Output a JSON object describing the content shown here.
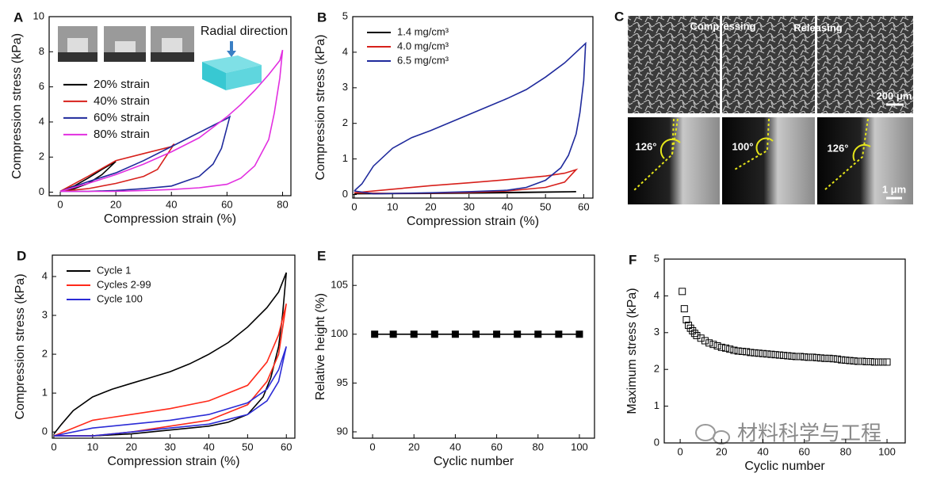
{
  "chart_data": [
    {
      "panel": "A",
      "type": "line",
      "xlabel": "Compression strain (%)",
      "ylabel": "Compression stress (kPa)",
      "xlim": [
        -4,
        83
      ],
      "ylim": [
        -0.2,
        10
      ],
      "xticks": [
        0,
        20,
        40,
        60,
        80
      ],
      "yticks": [
        0,
        2,
        4,
        6,
        8,
        10
      ],
      "legend": "center left",
      "annotations": [
        "Radial direction"
      ],
      "series": [
        {
          "name": "20% strain",
          "color": "#000000",
          "x": [
            0,
            5,
            10,
            15,
            20,
            15,
            10,
            5,
            0
          ],
          "values": [
            0.05,
            0.35,
            0.8,
            1.3,
            1.75,
            1.0,
            0.5,
            0.2,
            0.05
          ]
        },
        {
          "name": "40% strain",
          "color": "#d7201b",
          "x": [
            0,
            10,
            20,
            30,
            40,
            41,
            35,
            30,
            20,
            10,
            0
          ],
          "values": [
            0.05,
            0.9,
            1.8,
            2.2,
            2.6,
            2.75,
            1.3,
            0.9,
            0.5,
            0.2,
            0.05
          ]
        },
        {
          "name": "60% strain",
          "color": "#1f2a9c",
          "x": [
            0,
            10,
            20,
            30,
            40,
            45,
            50,
            55,
            60,
            61,
            58,
            55,
            50,
            40,
            30,
            20,
            10,
            0
          ],
          "values": [
            0.05,
            0.6,
            1.1,
            1.8,
            2.6,
            3.0,
            3.4,
            3.8,
            4.2,
            4.3,
            2.5,
            1.6,
            0.9,
            0.35,
            0.2,
            0.1,
            0.05,
            0.05
          ]
        },
        {
          "name": "80% strain",
          "color": "#e22fe0",
          "x": [
            0,
            10,
            20,
            30,
            40,
            50,
            60,
            65,
            70,
            75,
            79,
            80,
            79,
            77,
            75,
            70,
            65,
            60,
            50,
            40,
            30,
            20,
            10,
            0
          ],
          "values": [
            0.05,
            0.5,
            1.0,
            1.6,
            2.3,
            3.1,
            4.3,
            5.0,
            5.8,
            6.7,
            7.5,
            8.1,
            6.5,
            4.5,
            3.0,
            1.5,
            0.8,
            0.45,
            0.25,
            0.15,
            0.1,
            0.05,
            0.05,
            0.05
          ]
        }
      ]
    },
    {
      "panel": "B",
      "type": "line",
      "xlabel": "Compression strain (%)",
      "ylabel": "Compression stress (kPa)",
      "xlim": [
        -0.4,
        62.4
      ],
      "ylim": [
        -0.1,
        5
      ],
      "xticks": [
        0,
        10,
        20,
        30,
        40,
        50,
        60
      ],
      "yticks": [
        0,
        1,
        2,
        3,
        4,
        5
      ],
      "legend": "upper left",
      "series": [
        {
          "name": "1.4 mg/cm³",
          "color": "#000000",
          "x": [
            0,
            20,
            40,
            58,
            40,
            20,
            0
          ],
          "values": [
            0.02,
            0.04,
            0.06,
            0.08,
            0.05,
            0.03,
            0.02
          ]
        },
        {
          "name": "4.0 mg/cm³",
          "color": "#d7201b",
          "x": [
            0,
            10,
            20,
            30,
            40,
            50,
            55,
            58,
            55,
            50,
            40,
            30,
            20,
            10,
            0
          ],
          "values": [
            0.05,
            0.15,
            0.25,
            0.33,
            0.42,
            0.52,
            0.6,
            0.7,
            0.35,
            0.2,
            0.1,
            0.06,
            0.04,
            0.03,
            0.05
          ]
        },
        {
          "name": "6.5 mg/cm³",
          "color": "#1f2a9c",
          "x": [
            0,
            2,
            5,
            10,
            15,
            20,
            30,
            40,
            45,
            50,
            55,
            58,
            60,
            60.5,
            60,
            59,
            58,
            56,
            54,
            50,
            45,
            40,
            30,
            20,
            10,
            5,
            0
          ],
          "values": [
            0.1,
            0.3,
            0.8,
            1.3,
            1.6,
            1.8,
            2.25,
            2.7,
            2.95,
            3.3,
            3.7,
            4.0,
            4.2,
            4.25,
            3.2,
            2.3,
            1.7,
            1.1,
            0.75,
            0.4,
            0.2,
            0.12,
            0.08,
            0.05,
            0.03,
            0.02,
            0.1
          ]
        }
      ]
    },
    {
      "panel": "D",
      "type": "line",
      "xlabel": "Compression strain (%)",
      "ylabel": "Compression stress (kPa)",
      "xlim": [
        -0.4,
        62.2
      ],
      "ylim": [
        -0.16,
        4.55
      ],
      "xticks": [
        0,
        10,
        20,
        30,
        40,
        50,
        60
      ],
      "yticks": [
        0,
        1,
        2,
        3,
        4
      ],
      "legend": "upper left",
      "series": [
        {
          "name": "Cycle 1",
          "color": "#000000",
          "x": [
            0,
            2,
            5,
            10,
            15,
            20,
            25,
            30,
            35,
            40,
            45,
            50,
            55,
            58,
            60,
            59,
            58,
            56,
            54,
            50,
            45,
            40,
            30,
            20,
            10,
            0
          ],
          "values": [
            -0.05,
            0.2,
            0.55,
            0.9,
            1.1,
            1.25,
            1.4,
            1.55,
            1.75,
            2.0,
            2.3,
            2.7,
            3.2,
            3.6,
            4.1,
            3.0,
            2.2,
            1.4,
            0.9,
            0.45,
            0.25,
            0.15,
            0.05,
            -0.05,
            -0.1,
            -0.1
          ]
        },
        {
          "name": "Cycles 2-99",
          "color": "#ff2a1a",
          "x": [
            0,
            10,
            20,
            30,
            40,
            50,
            55,
            58,
            60,
            58,
            55,
            50,
            40,
            30,
            20,
            10,
            0
          ],
          "values": [
            -0.1,
            0.3,
            0.45,
            0.6,
            0.8,
            1.2,
            1.8,
            2.5,
            3.3,
            2.0,
            1.3,
            0.7,
            0.3,
            0.15,
            0.0,
            -0.1,
            -0.1
          ]
        },
        {
          "name": "Cycle 100",
          "color": "#2b2bd6",
          "x": [
            0,
            10,
            20,
            30,
            40,
            50,
            55,
            58,
            60,
            58,
            55,
            50,
            40,
            30,
            20,
            10,
            0
          ],
          "values": [
            -0.1,
            0.1,
            0.2,
            0.3,
            0.45,
            0.75,
            1.1,
            1.6,
            2.2,
            1.3,
            0.8,
            0.45,
            0.2,
            0.1,
            0.0,
            -0.1,
            -0.1
          ]
        }
      ]
    },
    {
      "panel": "E",
      "type": "line",
      "marker": "square",
      "xlabel": "Cyclic number",
      "ylabel": "Relative height (%)",
      "xlim": [
        -9.6,
        107.3
      ],
      "ylim": [
        89.35,
        108.1
      ],
      "xticks": [
        0,
        20,
        40,
        60,
        80,
        100
      ],
      "yticks": [
        90,
        95,
        100,
        105
      ],
      "series": [
        {
          "color": "#000000",
          "x": [
            1,
            10,
            20,
            30,
            40,
            50,
            60,
            70,
            80,
            90,
            100
          ],
          "values": [
            100,
            100,
            100,
            100,
            100,
            100,
            100,
            100,
            100,
            100,
            100
          ]
        }
      ]
    },
    {
      "panel": "F",
      "type": "scatter",
      "marker": "square",
      "xlabel": "Cyclic number",
      "ylabel": "Maximum stress (kPa)",
      "xlim": [
        -7.7,
        108.8
      ],
      "ylim": [
        0,
        5
      ],
      "xticks": [
        0,
        20,
        40,
        60,
        80,
        100
      ],
      "yticks": [
        0,
        1,
        2,
        3,
        4,
        5
      ],
      "series": [
        {
          "color": "#000000",
          "x": [
            1,
            2,
            3,
            4,
            5,
            6,
            7,
            8,
            10,
            12,
            14,
            16,
            18,
            20,
            22,
            24,
            26,
            28,
            30,
            32,
            34,
            36,
            38,
            40,
            42,
            44,
            46,
            48,
            50,
            52,
            54,
            56,
            58,
            60,
            62,
            64,
            66,
            68,
            70,
            72,
            74,
            76,
            78,
            80,
            82,
            84,
            86,
            88,
            90,
            92,
            94,
            96,
            98,
            100
          ],
          "values": [
            4.12,
            3.65,
            3.35,
            3.2,
            3.12,
            3.05,
            2.98,
            2.92,
            2.85,
            2.78,
            2.72,
            2.68,
            2.64,
            2.6,
            2.58,
            2.55,
            2.52,
            2.5,
            2.49,
            2.48,
            2.46,
            2.45,
            2.44,
            2.43,
            2.42,
            2.41,
            2.4,
            2.39,
            2.38,
            2.37,
            2.36,
            2.35,
            2.35,
            2.34,
            2.33,
            2.33,
            2.32,
            2.31,
            2.3,
            2.3,
            2.29,
            2.28,
            2.26,
            2.25,
            2.24,
            2.23,
            2.22,
            2.22,
            2.21,
            2.21,
            2.2,
            2.2,
            2.2,
            2.2
          ]
        }
      ]
    }
  ],
  "image_panel": {
    "panel": "C",
    "labels": [
      "Compressing",
      "Releasing"
    ],
    "scale_bars": [
      "200 μm",
      "1 μm"
    ],
    "angles": [
      "126°",
      "100°",
      "126°"
    ]
  },
  "watermark": "材料科学与工程"
}
